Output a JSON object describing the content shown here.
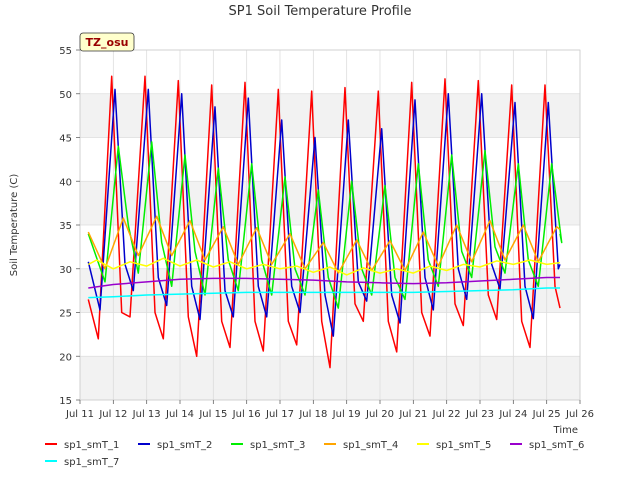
{
  "chart_data": {
    "type": "line",
    "title": "SP1 Soil Temperature Profile",
    "xlabel": "Time",
    "ylabel": "Soil Temperature (C)",
    "station_label": "TZ_osu",
    "xlim": [
      11,
      26
    ],
    "ylim": [
      15,
      55
    ],
    "x_ticks": [
      11,
      12,
      13,
      14,
      15,
      16,
      17,
      18,
      19,
      20,
      21,
      22,
      23,
      24,
      25,
      26
    ],
    "x_tick_labels": [
      "Jul 11",
      "Jul 12",
      "Jul 13",
      "Jul 14",
      "Jul 15",
      "Jul 16",
      "Jul 17",
      "Jul 18",
      "Jul 19",
      "Jul 20",
      "Jul 21",
      "Jul 22",
      "Jul 23",
      "Jul 24",
      "Jul 25",
      "Jul 26"
    ],
    "y_ticks": [
      15,
      20,
      25,
      30,
      35,
      40,
      45,
      50,
      55
    ],
    "y_tick_labels": [
      "15",
      "20",
      "25",
      "30",
      "35",
      "40",
      "45",
      "50",
      "55"
    ],
    "grid": true,
    "legend_position": "bottom",
    "series": [
      {
        "name": "sp1_smT_1",
        "color": "#ff0000",
        "x": [
          11.25,
          11.55,
          11.95,
          12.25,
          12.5,
          12.95,
          13.25,
          13.5,
          13.95,
          14.25,
          14.5,
          14.95,
          15.25,
          15.5,
          15.95,
          16.25,
          16.5,
          16.95,
          17.25,
          17.5,
          17.95,
          18.25,
          18.5,
          18.95,
          19.25,
          19.5,
          19.95,
          20.25,
          20.5,
          20.95,
          21.25,
          21.5,
          21.95,
          22.25,
          22.5,
          22.95,
          23.25,
          23.5,
          23.95,
          24.25,
          24.5,
          24.95,
          25.25,
          25.4
        ],
        "y": [
          26.5,
          22.0,
          52.0,
          25.0,
          24.5,
          52.0,
          25.0,
          22.0,
          51.5,
          24.5,
          20.0,
          51.0,
          24.0,
          21.0,
          51.3,
          24.0,
          20.6,
          50.5,
          24.0,
          21.3,
          50.3,
          24.0,
          18.7,
          50.7,
          26.0,
          24.0,
          50.3,
          24.0,
          20.5,
          51.3,
          25.0,
          22.3,
          51.7,
          26.0,
          23.5,
          51.5,
          27.0,
          24.2,
          51.0,
          24.0,
          21.0,
          51.0,
          28.0,
          25.5
        ]
      },
      {
        "name": "sp1_smT_2",
        "color": "#0000cc",
        "x": [
          11.25,
          11.6,
          12.05,
          12.35,
          12.6,
          13.05,
          13.35,
          13.6,
          14.05,
          14.35,
          14.6,
          15.05,
          15.35,
          15.6,
          16.05,
          16.35,
          16.6,
          17.05,
          17.35,
          17.6,
          18.05,
          18.35,
          18.6,
          19.05,
          19.35,
          19.6,
          20.05,
          20.35,
          20.6,
          21.05,
          21.35,
          21.6,
          22.05,
          22.35,
          22.6,
          23.05,
          23.35,
          23.6,
          24.05,
          24.35,
          24.6,
          25.05,
          25.35,
          25.4
        ],
        "y": [
          30.8,
          25.3,
          50.5,
          30.5,
          27.5,
          50.5,
          29.0,
          25.8,
          50.0,
          28.0,
          24.2,
          48.5,
          27.5,
          24.5,
          49.5,
          28.0,
          24.5,
          47.0,
          28.0,
          25.0,
          45.0,
          27.0,
          22.3,
          47.0,
          28.5,
          26.3,
          46.0,
          27.0,
          23.8,
          49.3,
          29.0,
          25.3,
          50.0,
          30.0,
          26.5,
          50.0,
          30.5,
          27.7,
          49.0,
          28.0,
          24.3,
          49.0,
          30.0,
          30.5
        ]
      },
      {
        "name": "sp1_smT_3",
        "color": "#00ee00",
        "x": [
          11.25,
          11.75,
          12.15,
          12.45,
          12.75,
          13.15,
          13.45,
          13.75,
          14.15,
          14.45,
          14.75,
          15.15,
          15.45,
          15.75,
          16.15,
          16.45,
          16.75,
          17.15,
          17.45,
          17.75,
          18.15,
          18.45,
          18.75,
          19.15,
          19.45,
          19.75,
          20.15,
          20.45,
          20.75,
          21.15,
          21.45,
          21.75,
          22.15,
          22.45,
          22.75,
          23.15,
          23.45,
          23.75,
          24.15,
          24.45,
          24.75,
          25.15,
          25.45,
          25.4
        ],
        "y": [
          34.0,
          28.5,
          44.0,
          35.0,
          29.5,
          44.5,
          33.0,
          28.0,
          43.0,
          32.0,
          27.0,
          41.5,
          31.0,
          27.5,
          42.0,
          31.0,
          27.0,
          40.5,
          30.0,
          27.0,
          39.0,
          29.0,
          25.5,
          40.0,
          30.0,
          27.0,
          39.5,
          29.0,
          26.5,
          42.0,
          31.0,
          28.0,
          43.0,
          32.0,
          29.0,
          43.5,
          32.5,
          29.5,
          42.0,
          31.0,
          28.0,
          42.0,
          33.0,
          34.0
        ]
      },
      {
        "name": "sp1_smT_4",
        "color": "#ffa500",
        "x": [
          11.25,
          11.75,
          12.3,
          12.75,
          13.3,
          13.75,
          14.3,
          14.75,
          15.3,
          15.75,
          16.3,
          16.75,
          17.3,
          17.75,
          18.3,
          18.75,
          19.3,
          19.75,
          20.3,
          20.75,
          21.3,
          21.75,
          22.3,
          22.75,
          23.3,
          23.75,
          24.3,
          24.75,
          25.3,
          25.4
        ],
        "y": [
          34.2,
          30.0,
          35.8,
          31.5,
          36.0,
          31.5,
          35.5,
          31.0,
          34.8,
          30.5,
          34.7,
          30.5,
          34.0,
          30.0,
          33.0,
          29.5,
          33.3,
          29.8,
          33.2,
          29.8,
          34.2,
          30.3,
          35.0,
          30.8,
          35.5,
          31.0,
          35.0,
          30.8,
          34.8,
          34.5
        ]
      },
      {
        "name": "sp1_smT_5",
        "color": "#ffff00",
        "x": [
          11.25,
          11.5,
          12.0,
          12.5,
          13.0,
          13.5,
          14.0,
          14.5,
          15.0,
          15.5,
          16.0,
          16.5,
          17.0,
          17.5,
          18.0,
          18.5,
          19.0,
          19.5,
          20.0,
          20.5,
          21.0,
          21.5,
          22.0,
          22.5,
          23.0,
          23.5,
          24.0,
          24.5,
          25.0,
          25.4
        ],
        "y": [
          30.5,
          31.0,
          30.0,
          30.8,
          30.3,
          31.2,
          30.3,
          31.0,
          30.2,
          30.8,
          30.0,
          30.5,
          30.0,
          30.3,
          29.6,
          30.2,
          29.3,
          30.1,
          29.5,
          30.0,
          29.5,
          30.3,
          29.8,
          30.5,
          30.2,
          30.9,
          30.5,
          31.0,
          30.5,
          30.7
        ]
      },
      {
        "name": "sp1_smT_6",
        "color": "#9900cc",
        "x": [
          11.25,
          12.0,
          13.0,
          14.0,
          15.0,
          16.0,
          17.0,
          18.0,
          19.0,
          20.0,
          21.0,
          22.0,
          23.0,
          24.0,
          25.0,
          25.4
        ],
        "y": [
          27.8,
          28.2,
          28.5,
          28.8,
          28.9,
          28.9,
          28.8,
          28.7,
          28.5,
          28.4,
          28.3,
          28.4,
          28.6,
          28.8,
          29.0,
          29.0
        ]
      },
      {
        "name": "sp1_smT_7",
        "color": "#00ffff",
        "x": [
          11.25,
          12.0,
          13.0,
          14.0,
          15.0,
          16.0,
          17.0,
          18.0,
          19.0,
          20.0,
          21.0,
          22.0,
          23.0,
          24.0,
          25.0,
          25.4
        ],
        "y": [
          26.7,
          26.8,
          27.0,
          27.1,
          27.2,
          27.3,
          27.3,
          27.3,
          27.3,
          27.3,
          27.3,
          27.4,
          27.5,
          27.6,
          27.8,
          27.8
        ]
      }
    ]
  }
}
